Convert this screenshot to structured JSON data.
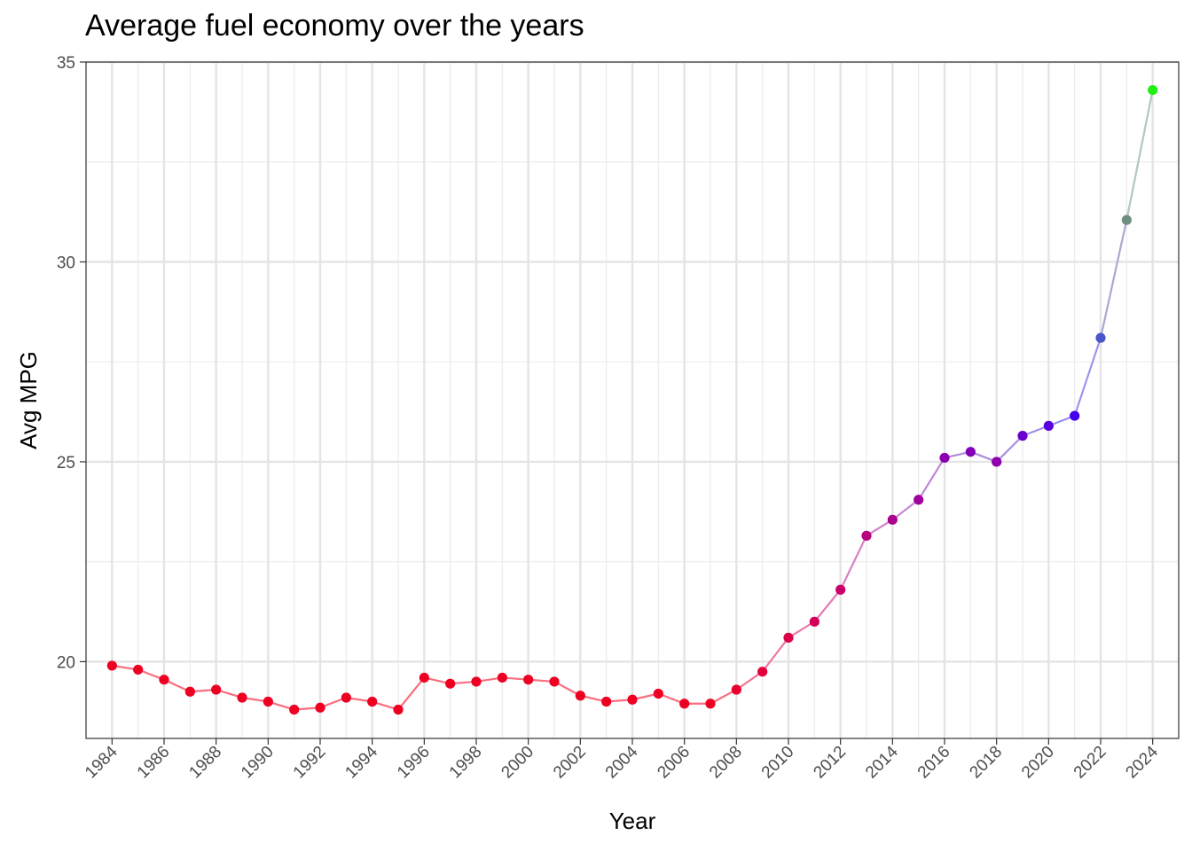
{
  "chart_data": {
    "type": "line",
    "title": "Average fuel economy over the years",
    "xlabel": "Year",
    "ylabel": "Avg MPG",
    "xlim": [
      1983,
      2025
    ],
    "ylim": [
      18.08,
      35.0
    ],
    "x_ticks": [
      1984,
      1986,
      1988,
      1990,
      1992,
      1994,
      1996,
      1998,
      2000,
      2002,
      2004,
      2006,
      2008,
      2010,
      2012,
      2014,
      2016,
      2018,
      2020,
      2022,
      2024
    ],
    "x_tick_labels": [
      "1984",
      "1986",
      "1988",
      "1990",
      "1992",
      "1994",
      "1996",
      "1998",
      "2000",
      "2002",
      "2004",
      "2006",
      "2008",
      "2010",
      "2012",
      "2014",
      "2016",
      "2018",
      "2020",
      "2022",
      "2024"
    ],
    "y_ticks": [
      20,
      25,
      30,
      35
    ],
    "y_tick_labels": [
      "20",
      "25",
      "30",
      "35"
    ],
    "grid": true,
    "legend": "none",
    "series": [
      {
        "x": [
          1984,
          1985,
          1986,
          1987,
          1988,
          1989,
          1990,
          1991,
          1992,
          1993,
          1994,
          1995,
          1996,
          1997,
          1998,
          1999,
          2000,
          2001,
          2002,
          2003,
          2004,
          2005,
          2006,
          2007,
          2008,
          2009,
          2010,
          2011,
          2012,
          2013,
          2014,
          2015,
          2016,
          2017,
          2018,
          2019,
          2020,
          2021,
          2022,
          2023,
          2024
        ],
        "y": [
          19.9,
          19.8,
          19.55,
          19.25,
          19.3,
          19.1,
          19.0,
          18.8,
          18.85,
          19.1,
          19.0,
          18.8,
          19.6,
          19.45,
          19.5,
          19.6,
          19.55,
          19.5,
          19.15,
          19.0,
          19.05,
          19.2,
          18.95,
          18.95,
          19.3,
          19.75,
          20.6,
          21.0,
          21.8,
          23.15,
          23.55,
          24.05,
          25.1,
          25.25,
          25.0,
          25.65,
          25.9,
          26.15,
          28.1,
          31.05,
          34.3
        ],
        "point_colors": [
          "#ee0022",
          "#ee0022",
          "#ee0022",
          "#ee0022",
          "#ee0022",
          "#ee0022",
          "#ee0022",
          "#ee0022",
          "#ee0022",
          "#ee0022",
          "#ee0022",
          "#ee0022",
          "#ee0022",
          "#ee0022",
          "#ee0022",
          "#ee0022",
          "#ee0022",
          "#ee0022",
          "#ee0022",
          "#ee0022",
          "#ee0022",
          "#ee0022",
          "#ee0022",
          "#ee0022",
          "#e8002e",
          "#e4003a",
          "#dc0048",
          "#d40058",
          "#c80068",
          "#b80080",
          "#ac008e",
          "#a0009c",
          "#8a00b0",
          "#8400b8",
          "#8c00ae",
          "#6a00cc",
          "#5a00dc",
          "#4400ee",
          "#4a55cc",
          "#6e9080",
          "#22ee11"
        ],
        "line_colors": [
          "#fa6e7e",
          "#fa6e7e",
          "#fa6e7e",
          "#fa6e7e",
          "#fa6e7e",
          "#fa6e7e",
          "#fa6e7e",
          "#fa6e7e",
          "#fa6e7e",
          "#fa6e7e",
          "#fa6e7e",
          "#fa6e7e",
          "#fa6e7e",
          "#fa6e7e",
          "#fa6e7e",
          "#fa6e7e",
          "#fa6e7e",
          "#fa6e7e",
          "#fa6e7e",
          "#fa6e7e",
          "#fa6e7e",
          "#fa6e7e",
          "#fa6e7e",
          "#f7708a",
          "#f27494",
          "#ee76a0",
          "#ea78a8",
          "#e47ab6",
          "#da80c4",
          "#d282cc",
          "#c886d6",
          "#bb88dc",
          "#b48adc",
          "#b08cdc",
          "#a88ee0",
          "#9e90e8",
          "#9690ec",
          "#9a96ea",
          "#a8a8d4",
          "#b0c8c0"
        ]
      }
    ]
  }
}
